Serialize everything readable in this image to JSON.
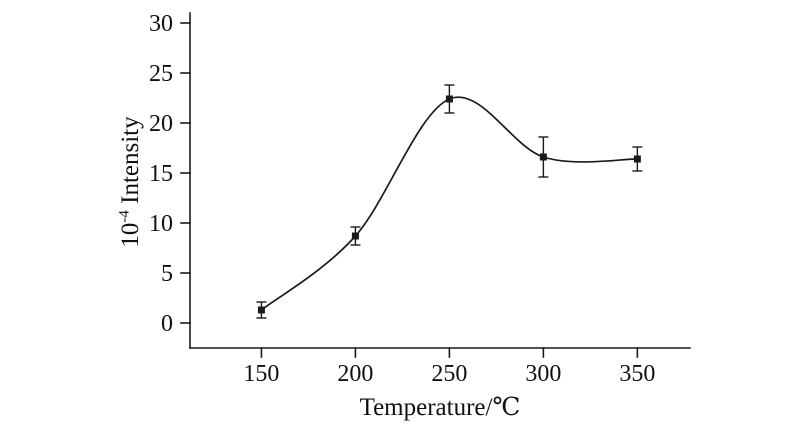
{
  "chart_data": {
    "type": "line",
    "title": "",
    "xlabel": "Temperature/℃",
    "ylabel": {
      "base": "10",
      "exponent": "-4",
      "rest": " Intensity"
    },
    "x": [
      150,
      200,
      250,
      300,
      350
    ],
    "series": [
      {
        "name": "Intensity",
        "values": [
          1.3,
          8.7,
          22.4,
          16.6,
          16.4
        ],
        "errors": [
          0.8,
          0.9,
          1.4,
          2.0,
          1.2
        ]
      }
    ],
    "xlim": [
      112,
      378
    ],
    "ylim": [
      -2.5,
      31
    ],
    "xticks": [
      150,
      200,
      250,
      300,
      350
    ],
    "yticks": [
      0,
      5,
      10,
      15,
      20,
      25,
      30
    ],
    "marker": "filled-square",
    "error_bars": true,
    "smooth": true,
    "grid": false,
    "legend": "none",
    "line_color": "#1a1a1a",
    "background_color": "#ffffff"
  }
}
